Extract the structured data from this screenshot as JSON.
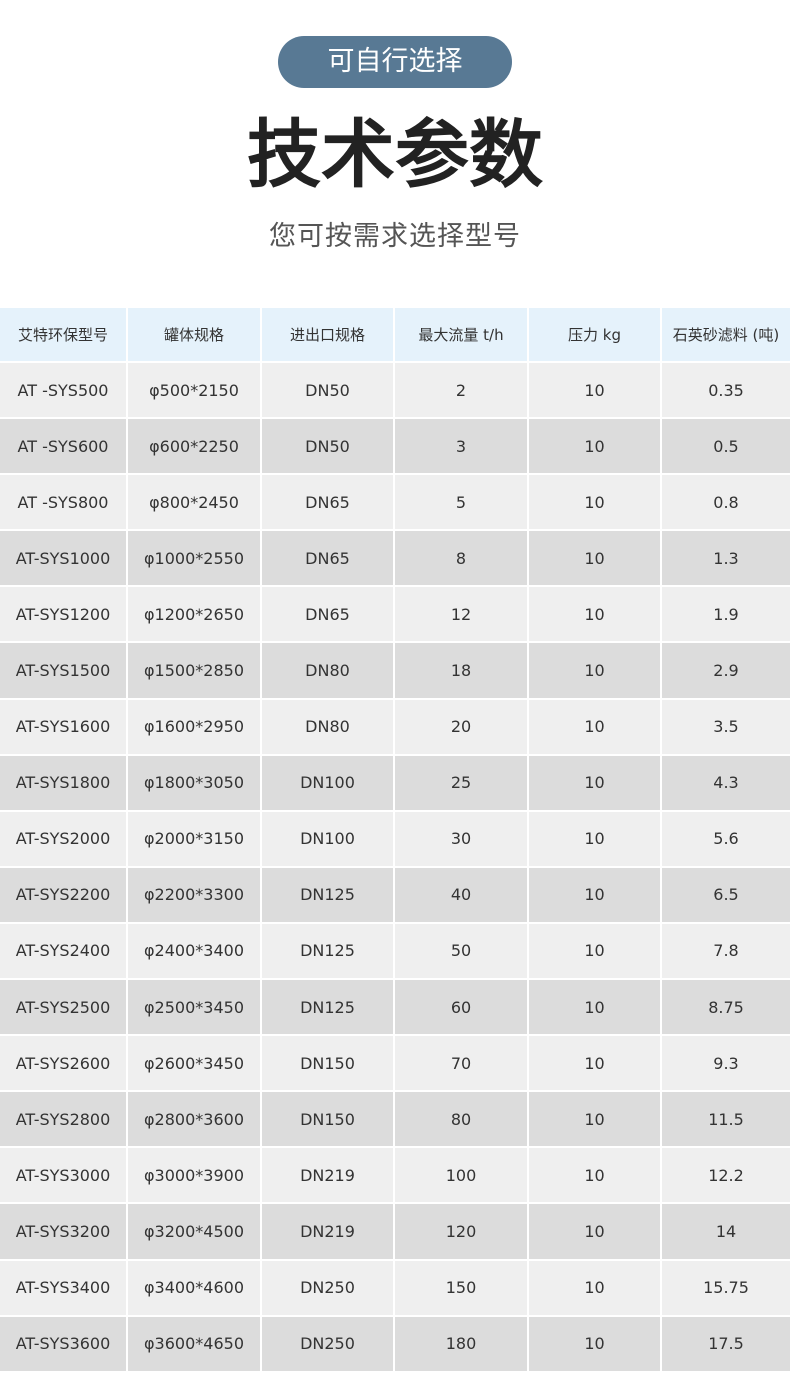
{
  "header": {
    "badge": "可自行选择",
    "title": "技术参数",
    "subtitle": "您可按需求选择型号"
  },
  "table": {
    "columns": [
      "艾特环保型号",
      "罐体规格",
      "进出口规格",
      "最大流量 t/h",
      "压力 kg",
      "石英砂滤料 (吨)"
    ],
    "rows": [
      [
        "AT -SYS500",
        "φ500*2150",
        "DN50",
        "2",
        "10",
        "0.35"
      ],
      [
        "AT -SYS600",
        "φ600*2250",
        "DN50",
        "3",
        "10",
        "0.5"
      ],
      [
        "AT -SYS800",
        "φ800*2450",
        "DN65",
        "5",
        "10",
        "0.8"
      ],
      [
        "AT-SYS1000",
        "φ1000*2550",
        "DN65",
        "8",
        "10",
        "1.3"
      ],
      [
        "AT-SYS1200",
        "φ1200*2650",
        "DN65",
        "12",
        "10",
        "1.9"
      ],
      [
        "AT-SYS1500",
        "φ1500*2850",
        "DN80",
        "18",
        "10",
        "2.9"
      ],
      [
        "AT-SYS1600",
        "φ1600*2950",
        "DN80",
        "20",
        "10",
        "3.5"
      ],
      [
        "AT-SYS1800",
        "φ1800*3050",
        "DN100",
        "25",
        "10",
        "4.3"
      ],
      [
        "AT-SYS2000",
        "φ2000*3150",
        "DN100",
        "30",
        "10",
        "5.6"
      ],
      [
        "AT-SYS2200",
        "φ2200*3300",
        "DN125",
        "40",
        "10",
        "6.5"
      ],
      [
        "AT-SYS2400",
        "φ2400*3400",
        "DN125",
        "50",
        "10",
        "7.8"
      ],
      [
        "AT-SYS2500",
        "φ2500*3450",
        "DN125",
        "60",
        "10",
        "8.75"
      ],
      [
        "AT-SYS2600",
        "φ2600*3450",
        "DN150",
        "70",
        "10",
        "9.3"
      ],
      [
        "AT-SYS2800",
        "φ2800*3600",
        "DN150",
        "80",
        "10",
        "11.5"
      ],
      [
        "AT-SYS3000",
        "φ3000*3900",
        "DN219",
        "100",
        "10",
        "12.2"
      ],
      [
        "AT-SYS3200",
        "φ3200*4500",
        "DN219",
        "120",
        "10",
        "14"
      ],
      [
        "AT-SYS3400",
        "φ3400*4600",
        "DN250",
        "150",
        "10",
        "15.75"
      ],
      [
        "AT-SYS3600",
        "φ3600*4650",
        "DN250",
        "180",
        "10",
        "17.5"
      ]
    ]
  }
}
